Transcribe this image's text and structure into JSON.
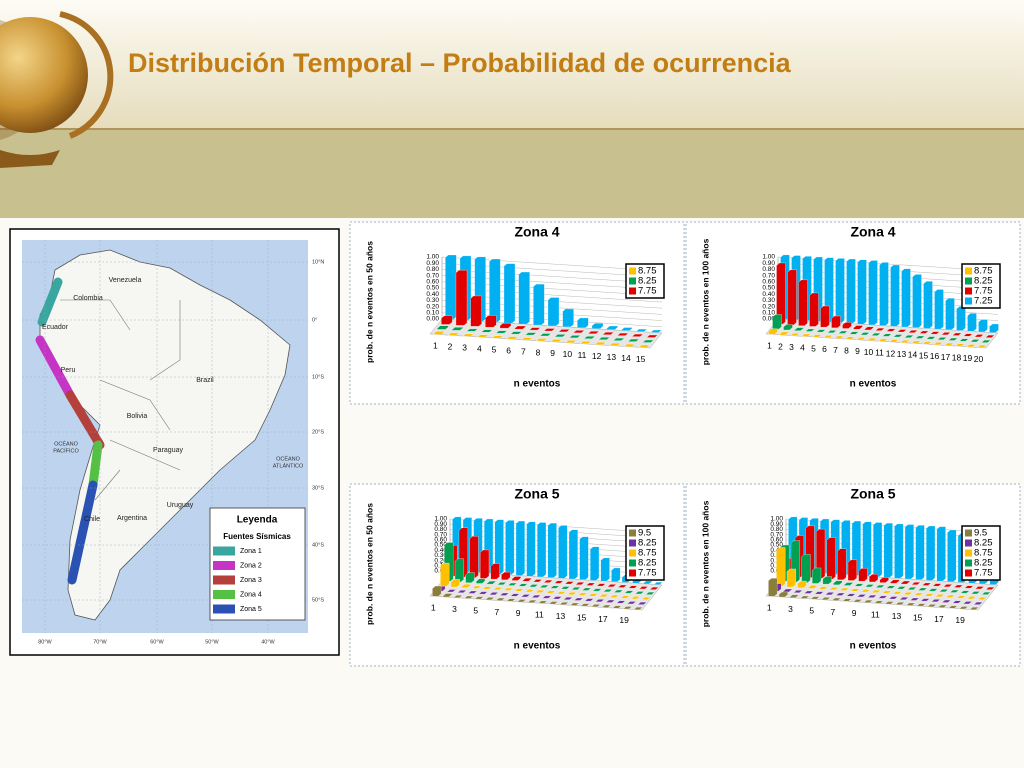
{
  "title": "Distribución Temporal – Probabilidad de ocurrencia",
  "map": {
    "countries": [
      "Venezuela",
      "Colombia",
      "Ecuador",
      "Peru",
      "Brazil",
      "Bolivia",
      "Paraguay",
      "Chile",
      "Argentina",
      "Uruguay"
    ],
    "oceans": [
      [
        "OCÉANO",
        "PACÍFICO"
      ],
      [
        "OCÉANO",
        "ATLÁNTICO"
      ]
    ],
    "lat_labels": [
      "10°N",
      "0°",
      "10°S",
      "20°S",
      "30°S",
      "40°S",
      "50°S"
    ],
    "lon_labels": [
      "80°W",
      "70°W",
      "60°W",
      "50°W",
      "40°W"
    ],
    "legend": {
      "title": "Leyenda",
      "subtitle": "Fuentes Sísmicas",
      "items": [
        {
          "label": "Zona 1",
          "color": "#3aa6a0"
        },
        {
          "label": "Zona 2",
          "color": "#c534c5"
        },
        {
          "label": "Zona 3",
          "color": "#b3403a"
        },
        {
          "label": "Zona 4",
          "color": "#54c044"
        },
        {
          "label": "Zona 5",
          "color": "#2a52b3"
        }
      ]
    }
  },
  "chart_data": [
    {
      "type": "bar3d",
      "title": "Zona 4",
      "ylabel": "prob. de n eventos en 50 años",
      "xlabel": "n eventos",
      "legend": "upper right",
      "categories": [
        "1",
        "2",
        "3",
        "4",
        "5",
        "6",
        "7",
        "8",
        "9",
        "10",
        "11",
        "12",
        "13",
        "14",
        "15"
      ],
      "ylim": [
        0,
        1
      ],
      "yticks": [
        {
          "value": 0,
          "label": "0.00"
        },
        {
          "value": 0.1,
          "label": "0.10"
        },
        {
          "value": 0.2,
          "label": "0.20"
        },
        {
          "value": 0.3,
          "label": "0.30"
        },
        {
          "value": 0.4,
          "label": "0.40"
        },
        {
          "value": 0.5,
          "label": "0.50"
        },
        {
          "value": 0.6,
          "label": "0.60"
        },
        {
          "value": 0.7,
          "label": "0.70"
        },
        {
          "value": 0.8,
          "label": "0.80"
        },
        {
          "value": 0.9,
          "label": "0.90"
        },
        {
          "value": 1,
          "label": "1.00"
        }
      ],
      "series": [
        {
          "name": "8.75",
          "color": "#ffc000",
          "values": [
            0.01,
            0,
            0,
            0,
            0,
            0,
            0,
            0,
            0,
            0,
            0,
            0,
            0,
            0,
            0
          ]
        },
        {
          "name": "8.25",
          "color": "#00a050",
          "values": [
            0.02,
            0.01,
            0,
            0,
            0,
            0,
            0,
            0,
            0,
            0,
            0,
            0,
            0,
            0,
            0
          ]
        },
        {
          "name": "7.75",
          "color": "#e00000",
          "values": [
            0.1,
            0.85,
            0.45,
            0.15,
            0.04,
            0.01,
            0,
            0,
            0,
            0,
            0,
            0,
            0,
            0,
            0
          ]
        },
        {
          "color": "#00b0f0",
          "values": [
            1,
            1,
            1,
            0.98,
            0.92,
            0.8,
            0.62,
            0.42,
            0.25,
            0.12,
            0.05,
            0.02,
            0.01,
            0,
            0
          ]
        }
      ]
    },
    {
      "type": "bar3d",
      "title": "Zona 4",
      "ylabel": "prob. de n eventos en 100 años",
      "xlabel": "n eventos",
      "legend": "upper right",
      "categories": [
        "1",
        "2",
        "3",
        "4",
        "5",
        "6",
        "7",
        "8",
        "9",
        "10",
        "11",
        "12",
        "13",
        "14",
        "15",
        "16",
        "17",
        "18",
        "19",
        "20"
      ],
      "ylim": [
        0,
        1
      ],
      "yticks": [
        {
          "value": 0,
          "label": "0.00"
        },
        {
          "value": 0.1,
          "label": "0.10"
        },
        {
          "value": 0.2,
          "label": "0.20"
        },
        {
          "value": 0.3,
          "label": "0.30"
        },
        {
          "value": 0.4,
          "label": "0.40"
        },
        {
          "value": 0.5,
          "label": "0.50"
        },
        {
          "value": 0.6,
          "label": "0.60"
        },
        {
          "value": 0.7,
          "label": "0.70"
        },
        {
          "value": 0.8,
          "label": "0.80"
        },
        {
          "value": 0.9,
          "label": "0.90"
        },
        {
          "value": 1,
          "label": "1.00"
        }
      ],
      "series": [
        {
          "name": "8.75",
          "color": "#ffc000",
          "values": [
            0.05,
            0.01,
            0,
            0,
            0,
            0,
            0,
            0,
            0,
            0,
            0,
            0,
            0,
            0,
            0,
            0,
            0,
            0,
            0,
            0
          ]
        },
        {
          "name": "8.25",
          "color": "#00a050",
          "values": [
            0.2,
            0.05,
            0.01,
            0,
            0,
            0,
            0,
            0,
            0,
            0,
            0,
            0,
            0,
            0,
            0,
            0,
            0,
            0,
            0,
            0
          ]
        },
        {
          "name": "7.75",
          "color": "#e00000",
          "values": [
            0.95,
            0.85,
            0.7,
            0.5,
            0.3,
            0.15,
            0.06,
            0.02,
            0.01,
            0,
            0,
            0,
            0,
            0,
            0,
            0,
            0,
            0,
            0,
            0
          ]
        },
        {
          "name": "7.25",
          "color": "#00b0f0",
          "values": [
            1,
            1,
            1,
            1,
            1,
            1,
            1,
            1,
            1,
            0.98,
            0.95,
            0.9,
            0.82,
            0.72,
            0.6,
            0.47,
            0.35,
            0.25,
            0.16,
            0.1
          ]
        }
      ]
    },
    {
      "type": "bar3d",
      "title": "Zona 5",
      "ylabel": "prob. de n eventos en 50 años",
      "xlabel": "n eventos",
      "legend": "upper right",
      "categories": [
        "1",
        null,
        "3",
        null,
        "5",
        null,
        "7",
        null,
        "9",
        null,
        "11",
        null,
        "13",
        null,
        "15",
        null,
        "17",
        null,
        "19",
        null
      ],
      "ylim": [
        0,
        1
      ],
      "yticks": [
        {
          "value": 0,
          "label": "0.00"
        },
        {
          "value": 0.1,
          "label": "0.10"
        },
        {
          "value": 0.2,
          "label": "0.20"
        },
        {
          "value": 0.3,
          "label": "0.30"
        },
        {
          "value": 0.4,
          "label": "0.40"
        },
        {
          "value": 0.5,
          "label": "0.50"
        },
        {
          "value": 0.6,
          "label": "0.60"
        },
        {
          "value": 0.7,
          "label": "0.70"
        },
        {
          "value": 0.8,
          "label": "0.80"
        },
        {
          "value": 0.9,
          "label": "0.90"
        },
        {
          "value": 1,
          "label": "1.00"
        }
      ],
      "series": [
        {
          "name": "9.5",
          "color": "#8b7d3a",
          "values": [
            0.15,
            0.02,
            0,
            0,
            0,
            0,
            0,
            0,
            0,
            0,
            0,
            0,
            0,
            0,
            0,
            0,
            0,
            0,
            0,
            0
          ]
        },
        {
          "name": "8.25",
          "color": "#7030a0",
          "values": [
            0.05,
            0,
            0,
            0,
            0,
            0,
            0,
            0,
            0,
            0,
            0,
            0,
            0,
            0,
            0,
            0,
            0,
            0,
            0,
            0
          ]
        },
        {
          "name": "8.75",
          "color": "#ffc000",
          "values": [
            0.4,
            0.1,
            0.02,
            0,
            0,
            0,
            0,
            0,
            0,
            0,
            0,
            0,
            0,
            0,
            0,
            0,
            0,
            0,
            0,
            0
          ]
        },
        {
          "name": "8.25",
          "color": "#00a050",
          "values": [
            0.7,
            0.4,
            0.15,
            0.04,
            0.01,
            0,
            0,
            0,
            0,
            0,
            0,
            0,
            0,
            0,
            0,
            0,
            0,
            0,
            0,
            0
          ]
        },
        {
          "name": "7.75",
          "color": "#e00000",
          "values": [
            0.55,
            0.9,
            0.75,
            0.5,
            0.25,
            0.1,
            0.03,
            0.01,
            0,
            0,
            0,
            0,
            0,
            0,
            0,
            0,
            0,
            0,
            0,
            0
          ]
        },
        {
          "color": "#00b0f0",
          "values": [
            1,
            1,
            1,
            1,
            1,
            1,
            1,
            1,
            1,
            1,
            0.97,
            0.9,
            0.78,
            0.6,
            0.4,
            0.22,
            0.1,
            0.04,
            0.01,
            0
          ]
        }
      ]
    },
    {
      "type": "bar3d",
      "title": "Zona 5",
      "ylabel": "prob. de n eventos en 100 años",
      "xlabel": "n eventos",
      "legend": "upper right",
      "categories": [
        "1",
        null,
        "3",
        null,
        "5",
        null,
        "7",
        null,
        "9",
        null,
        "11",
        null,
        "13",
        null,
        "15",
        null,
        "17",
        null,
        "19",
        null
      ],
      "ylim": [
        0,
        1
      ],
      "yticks": [
        {
          "value": 0,
          "label": "0.00"
        },
        {
          "value": 0.1,
          "label": "0.10"
        },
        {
          "value": 0.2,
          "label": "0.20"
        },
        {
          "value": 0.3,
          "label": "0.30"
        },
        {
          "value": 0.4,
          "label": "0.40"
        },
        {
          "value": 0.5,
          "label": "0.50"
        },
        {
          "value": 0.6,
          "label": "0.60"
        },
        {
          "value": 0.7,
          "label": "0.70"
        },
        {
          "value": 0.8,
          "label": "0.80"
        },
        {
          "value": 0.9,
          "label": "0.90"
        },
        {
          "value": 1,
          "label": "1.00"
        }
      ],
      "series": [
        {
          "name": "9.5",
          "color": "#8b7d3a",
          "values": [
            0.3,
            0.05,
            0.01,
            0,
            0,
            0,
            0,
            0,
            0,
            0,
            0,
            0,
            0,
            0,
            0,
            0,
            0,
            0,
            0,
            0
          ]
        },
        {
          "name": "8.25",
          "color": "#7030a0",
          "values": [
            0.1,
            0.01,
            0,
            0,
            0,
            0,
            0,
            0,
            0,
            0,
            0,
            0,
            0,
            0,
            0,
            0,
            0,
            0,
            0,
            0
          ]
        },
        {
          "name": "8.75",
          "color": "#ffc000",
          "values": [
            0.7,
            0.3,
            0.08,
            0.01,
            0,
            0,
            0,
            0,
            0,
            0,
            0,
            0,
            0,
            0,
            0,
            0,
            0,
            0,
            0,
            0
          ]
        },
        {
          "name": "8.25",
          "color": "#00a050",
          "values": [
            0.65,
            0.75,
            0.5,
            0.25,
            0.1,
            0.03,
            0.01,
            0,
            0,
            0,
            0,
            0,
            0,
            0,
            0,
            0,
            0,
            0,
            0,
            0
          ]
        },
        {
          "name": "7.75",
          "color": "#e00000",
          "values": [
            0.3,
            0.75,
            0.95,
            0.9,
            0.75,
            0.55,
            0.35,
            0.2,
            0.1,
            0.05,
            0.02,
            0.01,
            0,
            0,
            0,
            0,
            0,
            0,
            0,
            0
          ]
        },
        {
          "color": "#00b0f0",
          "values": [
            1,
            1,
            1,
            1,
            1,
            1,
            1,
            1,
            1,
            1,
            1,
            1,
            1,
            1,
            1,
            0.95,
            0.9,
            0.82,
            0.75,
            0.62
          ]
        }
      ]
    }
  ]
}
